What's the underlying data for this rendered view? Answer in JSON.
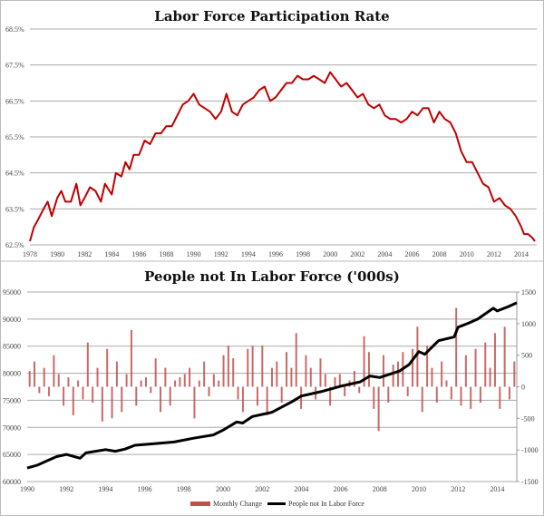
{
  "chart_data": [
    {
      "type": "line",
      "title": "Labor Force Participation Rate",
      "xlabel": "",
      "ylabel": "",
      "xlim": [
        1978,
        2015
      ],
      "ylim": [
        62.5,
        68.5
      ],
      "x_ticks": [
        "1978",
        "1980",
        "1982",
        "1984",
        "1986",
        "1988",
        "1990",
        "1992",
        "1994",
        "1996",
        "1998",
        "2000",
        "2002",
        "2004",
        "2006",
        "2008",
        "2010",
        "2012",
        "2014"
      ],
      "y_ticks": [
        "62.5%",
        "63.5%",
        "64.5%",
        "65.5%",
        "66.5%",
        "67.5%",
        "68.5%"
      ],
      "grid": true,
      "colors": {
        "line": "#c00000"
      },
      "series": [
        {
          "name": "Labor Force Participation Rate",
          "points": [
            [
              1978.0,
              62.6
            ],
            [
              1978.3,
              63.0
            ],
            [
              1978.6,
              63.2
            ],
            [
              1979.0,
              63.5
            ],
            [
              1979.3,
              63.7
            ],
            [
              1979.6,
              63.3
            ],
            [
              1980.0,
              63.8
            ],
            [
              1980.3,
              64.0
            ],
            [
              1980.6,
              63.7
            ],
            [
              1981.0,
              63.7
            ],
            [
              1981.4,
              64.2
            ],
            [
              1981.7,
              63.6
            ],
            [
              1982.0,
              63.8
            ],
            [
              1982.4,
              64.1
            ],
            [
              1982.8,
              64.0
            ],
            [
              1983.2,
              63.7
            ],
            [
              1983.5,
              64.2
            ],
            [
              1984.0,
              63.9
            ],
            [
              1984.3,
              64.5
            ],
            [
              1984.7,
              64.4
            ],
            [
              1985.0,
              64.8
            ],
            [
              1985.3,
              64.6
            ],
            [
              1985.6,
              65.0
            ],
            [
              1986.0,
              65.0
            ],
            [
              1986.4,
              65.4
            ],
            [
              1986.8,
              65.3
            ],
            [
              1987.2,
              65.6
            ],
            [
              1987.6,
              65.6
            ],
            [
              1988.0,
              65.8
            ],
            [
              1988.4,
              65.8
            ],
            [
              1988.8,
              66.1
            ],
            [
              1989.2,
              66.4
            ],
            [
              1989.6,
              66.5
            ],
            [
              1990.0,
              66.7
            ],
            [
              1990.4,
              66.4
            ],
            [
              1990.8,
              66.3
            ],
            [
              1991.2,
              66.2
            ],
            [
              1991.6,
              66.0
            ],
            [
              1992.0,
              66.2
            ],
            [
              1992.4,
              66.7
            ],
            [
              1992.8,
              66.2
            ],
            [
              1993.2,
              66.1
            ],
            [
              1993.6,
              66.4
            ],
            [
              1994.0,
              66.5
            ],
            [
              1994.4,
              66.6
            ],
            [
              1994.8,
              66.8
            ],
            [
              1995.2,
              66.9
            ],
            [
              1995.6,
              66.5
            ],
            [
              1996.0,
              66.6
            ],
            [
              1996.4,
              66.8
            ],
            [
              1996.8,
              67.0
            ],
            [
              1997.2,
              67.0
            ],
            [
              1997.6,
              67.2
            ],
            [
              1998.0,
              67.1
            ],
            [
              1998.4,
              67.1
            ],
            [
              1998.8,
              67.2
            ],
            [
              1999.2,
              67.1
            ],
            [
              1999.6,
              67.0
            ],
            [
              2000.0,
              67.3
            ],
            [
              2000.4,
              67.1
            ],
            [
              2000.8,
              66.9
            ],
            [
              2001.2,
              67.0
            ],
            [
              2001.6,
              66.8
            ],
            [
              2002.0,
              66.6
            ],
            [
              2002.4,
              66.7
            ],
            [
              2002.8,
              66.4
            ],
            [
              2003.2,
              66.3
            ],
            [
              2003.6,
              66.4
            ],
            [
              2004.0,
              66.1
            ],
            [
              2004.4,
              66.0
            ],
            [
              2004.8,
              66.0
            ],
            [
              2005.2,
              65.9
            ],
            [
              2005.6,
              66.0
            ],
            [
              2006.0,
              66.2
            ],
            [
              2006.4,
              66.1
            ],
            [
              2006.8,
              66.3
            ],
            [
              2007.2,
              66.3
            ],
            [
              2007.6,
              65.9
            ],
            [
              2008.0,
              66.2
            ],
            [
              2008.4,
              66.0
            ],
            [
              2008.8,
              65.9
            ],
            [
              2009.2,
              65.6
            ],
            [
              2009.6,
              65.1
            ],
            [
              2010.0,
              64.8
            ],
            [
              2010.4,
              64.8
            ],
            [
              2010.8,
              64.5
            ],
            [
              2011.2,
              64.2
            ],
            [
              2011.6,
              64.1
            ],
            [
              2012.0,
              63.7
            ],
            [
              2012.4,
              63.8
            ],
            [
              2012.8,
              63.6
            ],
            [
              2013.2,
              63.5
            ],
            [
              2013.6,
              63.3
            ],
            [
              2014.0,
              63.0
            ],
            [
              2014.2,
              62.8
            ],
            [
              2014.5,
              62.8
            ],
            [
              2014.8,
              62.7
            ],
            [
              2015.0,
              62.6
            ]
          ]
        }
      ]
    },
    {
      "type": "bar+line",
      "title": "People not In Labor Force ('000s)",
      "xlim": [
        1990,
        2015
      ],
      "ylim_left": [
        60000,
        95000
      ],
      "ylim_right": [
        -1500,
        1500
      ],
      "x_ticks": [
        "1990",
        "1992",
        "1994",
        "1996",
        "1998",
        "2000",
        "2002",
        "2004",
        "2006",
        "2008",
        "2010",
        "2012",
        "2014"
      ],
      "y_ticks_left": [
        "60000",
        "65000",
        "70000",
        "75000",
        "80000",
        "85000",
        "90000",
        "95000"
      ],
      "y_ticks_right": [
        "-1500",
        "-1000",
        "-500",
        "0",
        "500",
        "1000",
        "1500"
      ],
      "grid": true,
      "legend": {
        "position": "bottom",
        "entries": [
          "Monthly Change",
          "People not In Labor Force"
        ]
      },
      "colors": {
        "bars": "#c0504d",
        "line": "#000000"
      },
      "series": [
        {
          "name": "Monthly Change",
          "axis": "right",
          "values": [
            250,
            400,
            -100,
            300,
            -150,
            500,
            200,
            -300,
            150,
            -450,
            100,
            -200,
            700,
            -250,
            300,
            -550,
            600,
            -500,
            400,
            -400,
            200,
            900,
            -300,
            100,
            150,
            -100,
            450,
            -400,
            300,
            -300,
            100,
            150,
            200,
            300,
            -500,
            100,
            400,
            -150,
            200,
            100,
            500,
            650,
            450,
            -200,
            -400,
            600,
            650,
            -300,
            650,
            -450,
            300,
            400,
            -250,
            550,
            300,
            850,
            -350,
            500,
            300,
            -200,
            450,
            200,
            -300,
            150,
            200,
            -150,
            100,
            250,
            -100,
            800,
            550,
            -350,
            -700,
            500,
            -250,
            350,
            400,
            550,
            -150,
            600,
            950,
            -400,
            650,
            300,
            -250,
            400,
            100,
            -200,
            1250,
            -300,
            500,
            -350,
            600,
            -250,
            700,
            300,
            850,
            -350,
            950,
            -200,
            400
          ]
        },
        {
          "name": "People not In Labor Force",
          "axis": "left",
          "points": [
            [
              1990,
              62500
            ],
            [
              1990.5,
              63000
            ],
            [
              1991,
              63800
            ],
            [
              1991.5,
              64600
            ],
            [
              1992,
              65000
            ],
            [
              1992.7,
              64300
            ],
            [
              1993,
              65300
            ],
            [
              1994,
              65900
            ],
            [
              1994.5,
              65600
            ],
            [
              1995,
              66000
            ],
            [
              1995.5,
              66700
            ],
            [
              1996.5,
              67000
            ],
            [
              1997.5,
              67300
            ],
            [
              1998.5,
              68000
            ],
            [
              1999.5,
              68600
            ],
            [
              2000,
              69500
            ],
            [
              2000.7,
              71000
            ],
            [
              2001,
              70800
            ],
            [
              2001.5,
              72000
            ],
            [
              2002.5,
              72800
            ],
            [
              2003.5,
              74700
            ],
            [
              2004,
              75800
            ],
            [
              2005,
              76600
            ],
            [
              2006,
              77600
            ],
            [
              2007,
              78400
            ],
            [
              2007.5,
              79500
            ],
            [
              2008,
              79200
            ],
            [
              2009,
              80400
            ],
            [
              2009.5,
              81600
            ],
            [
              2010,
              84000
            ],
            [
              2010.3,
              83500
            ],
            [
              2011,
              86000
            ],
            [
              2011.8,
              86700
            ],
            [
              2012,
              88500
            ],
            [
              2012.5,
              89200
            ],
            [
              2013,
              90000
            ],
            [
              2013.8,
              92000
            ],
            [
              2014,
              91500
            ],
            [
              2014.5,
              92200
            ],
            [
              2015,
              93000
            ]
          ]
        }
      ]
    }
  ]
}
